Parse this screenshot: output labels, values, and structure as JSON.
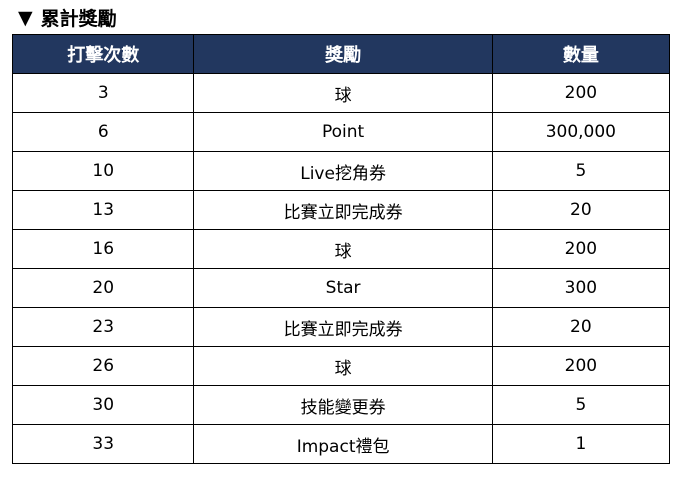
{
  "title": {
    "icon": "triangle-down",
    "text": "累計獎勵"
  },
  "header_color": "#22375f",
  "columns": [
    "打擊次數",
    "獎勵",
    "數量"
  ],
  "rows": [
    [
      "3",
      "球",
      "200"
    ],
    [
      "6",
      "Point",
      "300,000"
    ],
    [
      "10",
      "Live挖角券",
      "5"
    ],
    [
      "13",
      "比賽立即完成券",
      "20"
    ],
    [
      "16",
      "球",
      "200"
    ],
    [
      "20",
      "Star",
      "300"
    ],
    [
      "23",
      "比賽立即完成券",
      "20"
    ],
    [
      "26",
      "球",
      "200"
    ],
    [
      "30",
      "技能變更券",
      "5"
    ],
    [
      "33",
      "Impact禮包",
      "1"
    ]
  ]
}
